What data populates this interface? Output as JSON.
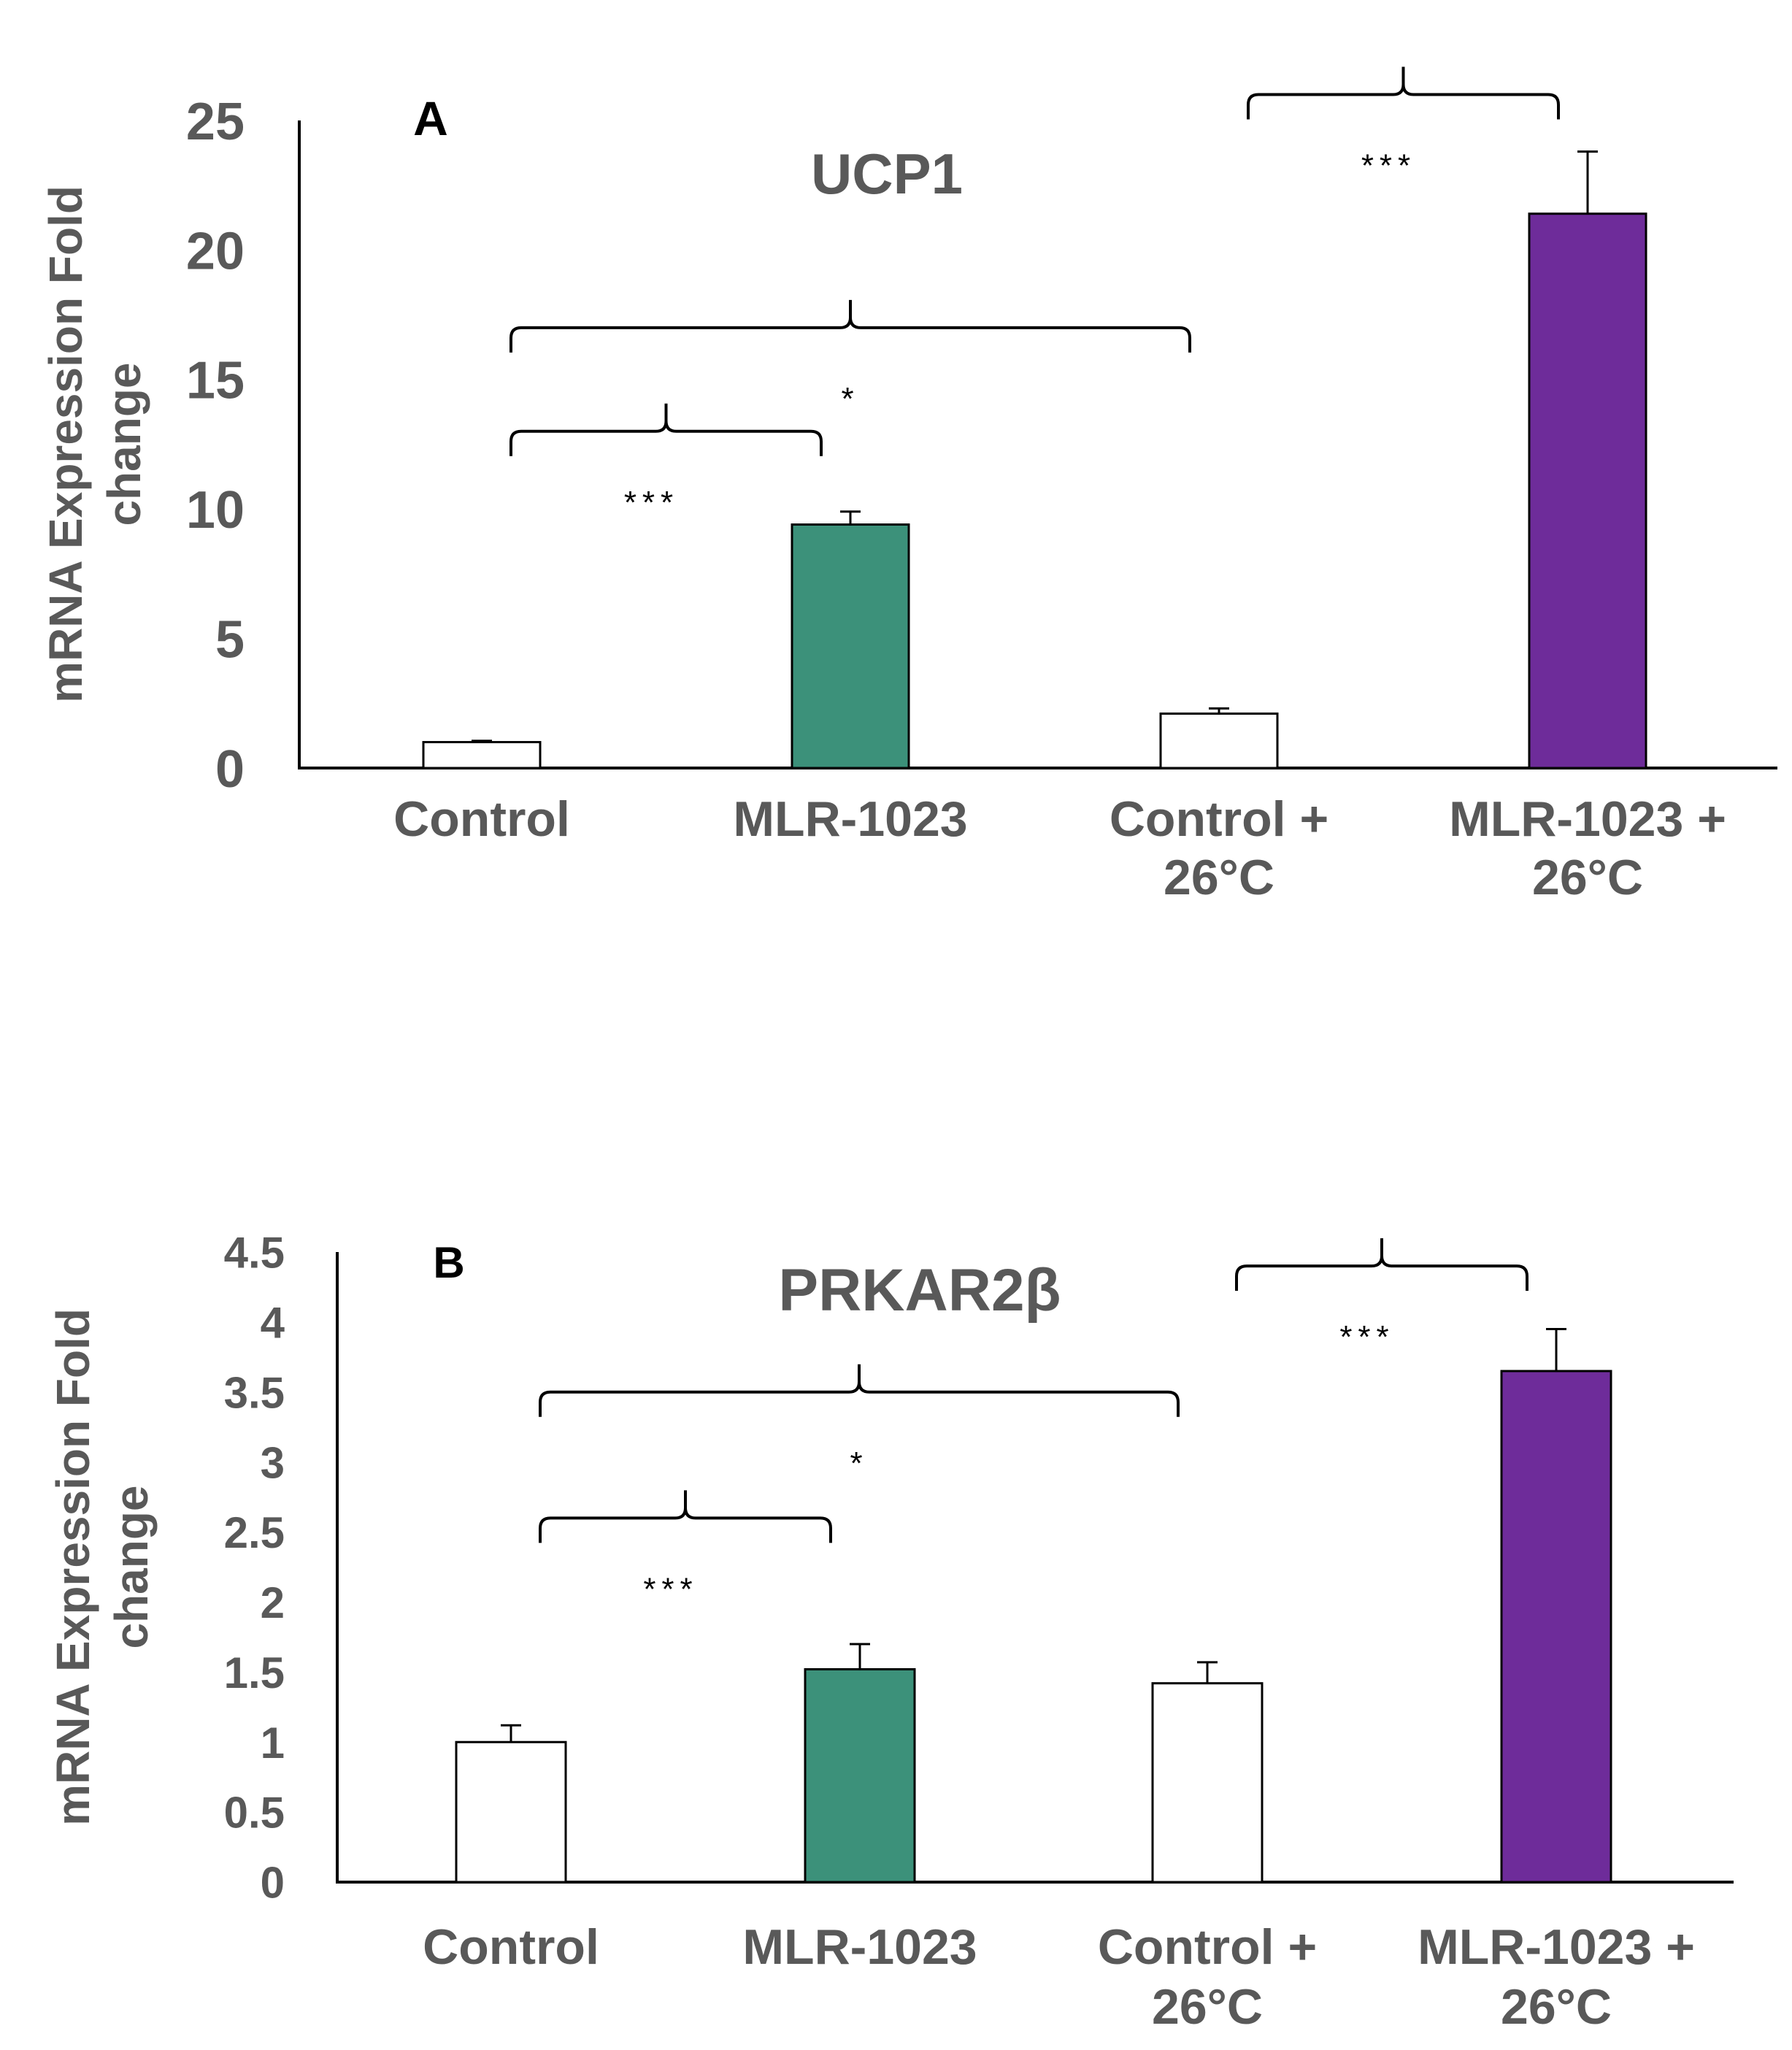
{
  "colors": {
    "control": "#ffffff",
    "mlr": "#3c917a",
    "mlr_warm": "#6e2c9a",
    "axis": "#000000",
    "text": "#595959"
  },
  "chart_data": [
    {
      "type": "bar",
      "panel_label": "A",
      "title": "UCP1",
      "ylabel_lines": [
        "mRNA Expression Fold",
        "change"
      ],
      "categories": [
        [
          "Control"
        ],
        [
          "MLR-1023"
        ],
        [
          "Control +",
          "26°C"
        ],
        [
          "MLR-1023 +",
          "26°C"
        ]
      ],
      "values": [
        1.0,
        9.4,
        2.1,
        21.4
      ],
      "errors": [
        0.05,
        0.5,
        0.2,
        2.4
      ],
      "bar_colors": [
        "control",
        "mlr",
        "control",
        "mlr_warm"
      ],
      "ylim": [
        0,
        25
      ],
      "yticks": [
        "0",
        "5",
        "10",
        "15",
        "20",
        "25"
      ],
      "ytick_values": [
        0,
        5,
        10,
        15,
        20,
        25
      ],
      "comparisons": [
        {
          "from": 0,
          "to": 1,
          "label": "***",
          "level": 13
        },
        {
          "from": 0,
          "to": 2,
          "label": "*",
          "level": 17
        },
        {
          "from": 2,
          "to": 3,
          "label": "***",
          "level": 26
        }
      ]
    },
    {
      "type": "bar",
      "panel_label": "B",
      "title": "PRKAR2β",
      "ylabel_lines": [
        "mRNA Expression Fold",
        "change"
      ],
      "categories": [
        [
          "Control"
        ],
        [
          "MLR-1023"
        ],
        [
          "Control +",
          "26°C"
        ],
        [
          "MLR-1023 +",
          "26°C"
        ]
      ],
      "values": [
        1.0,
        1.52,
        1.42,
        3.65
      ],
      "errors": [
        0.12,
        0.18,
        0.15,
        0.3
      ],
      "bar_colors": [
        "control",
        "mlr",
        "control",
        "mlr_warm"
      ],
      "ylim": [
        0,
        4.5
      ],
      "yticks": [
        "0",
        "0.5",
        "1",
        "1.5",
        "2",
        "2.5",
        "3",
        "3.5",
        "4",
        "4.5"
      ],
      "ytick_values": [
        0,
        0.5,
        1,
        1.5,
        2,
        2.5,
        3,
        3.5,
        4,
        4.5
      ],
      "comparisons": [
        {
          "from": 0,
          "to": 1,
          "label": "***",
          "level": 2.6
        },
        {
          "from": 0,
          "to": 2,
          "label": "*",
          "level": 3.5
        },
        {
          "from": 2,
          "to": 3,
          "label": "***",
          "level": 4.4
        }
      ]
    }
  ]
}
